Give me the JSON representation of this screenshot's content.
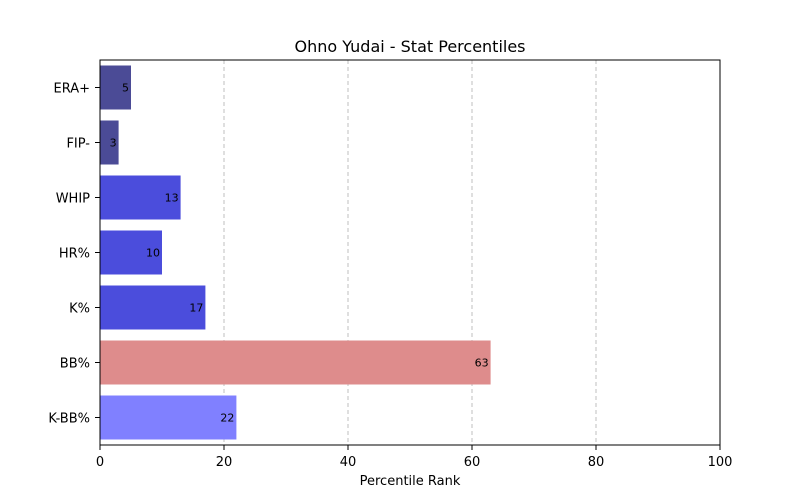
{
  "chart_data": {
    "type": "bar",
    "orientation": "horizontal",
    "title": "Ohno Yudai - Stat Percentiles",
    "xlabel": "Percentile Rank",
    "ylabel": "",
    "xlim": [
      0,
      100
    ],
    "xticks": [
      0,
      20,
      40,
      60,
      80,
      100
    ],
    "grid": "x-dashed",
    "categories": [
      "ERA+",
      "FIP-",
      "WHIP",
      "HR%",
      "K%",
      "BB%",
      "K-BB%"
    ],
    "values": [
      5,
      3,
      13,
      10,
      17,
      63,
      22
    ],
    "colors": [
      "#4b4b96",
      "#4b4b96",
      "#4b4ddc",
      "#4b4ddc",
      "#4b4ddc",
      "#de8c8c",
      "#8080ff"
    ]
  }
}
